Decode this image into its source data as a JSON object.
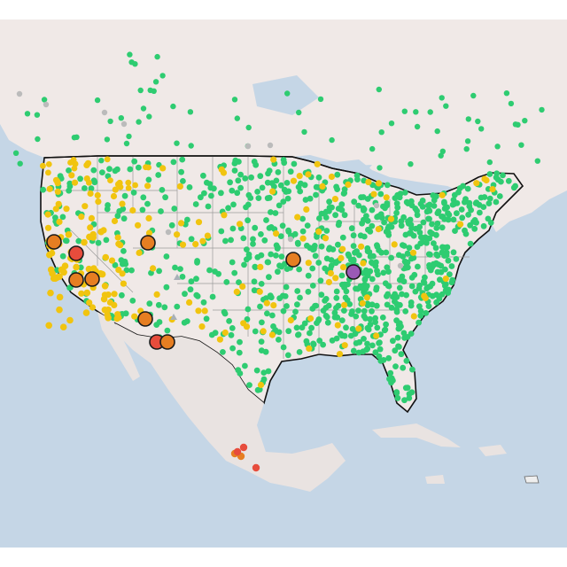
{
  "map": {
    "type": "air-quality-station-map",
    "region": "North America",
    "colors": {
      "water": "#c5d6e6",
      "land": "#f0e9e7",
      "land_muted": "#e9e3e1",
      "state_border": "#9a9a9a",
      "country_border": "#111111",
      "good": "#2ecc71",
      "moderate": "#f1c40f",
      "unhealthy_sensitive": "#e67e22",
      "unhealthy": "#e74c3c",
      "very_unhealthy": "#9b59b6",
      "no_data": "#bbbbbb",
      "marker_outline": "#1a1a1a"
    },
    "station_counts": {
      "good": 1200,
      "moderate": 210,
      "unhealthy_sensitive": 9,
      "unhealthy": 4,
      "very_unhealthy": 1
    }
  }
}
